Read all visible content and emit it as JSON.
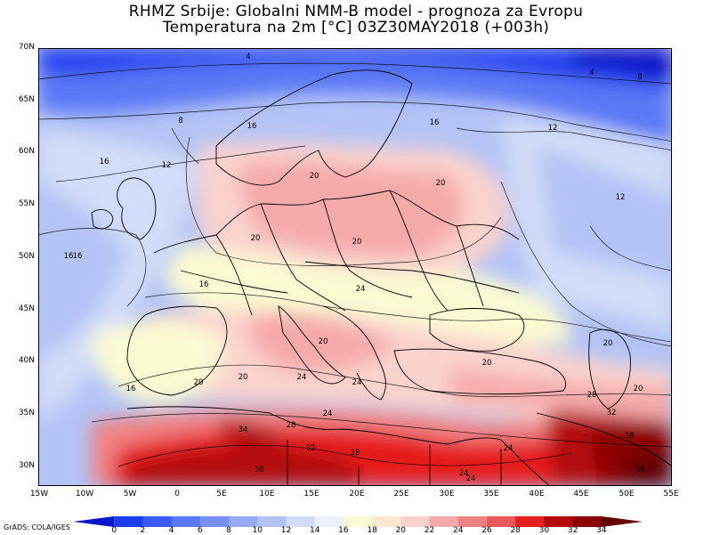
{
  "title": {
    "line1": "RHMZ Srbije: Globalni NMM-B model - prognoza za Evropu",
    "line2": "Temperatura na 2m [°C] 03Z30MAY2018 (+003h)"
  },
  "axes": {
    "lat_labels": [
      "70N",
      "65N",
      "60N",
      "55N",
      "50N",
      "45N",
      "40N",
      "35N",
      "30N"
    ],
    "lon_labels": [
      "15W",
      "10W",
      "5W",
      "0",
      "5E",
      "10E",
      "15E",
      "20E",
      "25E",
      "30E",
      "35E",
      "40E",
      "45E",
      "50E",
      "55E"
    ]
  },
  "credit": "GrADS: COLA/IGES",
  "colorbar": {
    "levels": [
      "0",
      "2",
      "4",
      "6",
      "8",
      "10",
      "12",
      "14",
      "16",
      "18",
      "20",
      "22",
      "24",
      "26",
      "28",
      "30",
      "32",
      "34"
    ],
    "colors": [
      "#0a14c8",
      "#1e3cf0",
      "#3c5af5",
      "#5a78f5",
      "#7890f5",
      "#96aaf5",
      "#b4c3f5",
      "#d2dcf8",
      "#ebf0fb",
      "#fafad2",
      "#fbe6d2",
      "#fad2cd",
      "#f5aaaa",
      "#f08282",
      "#eb5a5a",
      "#e61e1e",
      "#b40a0a",
      "#8c0000",
      "#640000"
    ]
  },
  "contour_labels": [
    {
      "v": "4"
    },
    {
      "v": "4"
    },
    {
      "v": "8"
    },
    {
      "v": "8"
    },
    {
      "v": "16"
    },
    {
      "v": "16"
    },
    {
      "v": "16"
    },
    {
      "v": "12"
    },
    {
      "v": "12"
    },
    {
      "v": "12"
    },
    {
      "v": "16"
    },
    {
      "v": "16"
    },
    {
      "v": "20"
    },
    {
      "v": "20"
    },
    {
      "v": "20"
    },
    {
      "v": "20"
    },
    {
      "v": "16"
    },
    {
      "v": "24"
    },
    {
      "v": "20"
    },
    {
      "v": "20"
    },
    {
      "v": "16"
    },
    {
      "v": "20"
    },
    {
      "v": "20"
    },
    {
      "v": "24"
    },
    {
      "v": "24"
    },
    {
      "v": "20"
    },
    {
      "v": "20"
    },
    {
      "v": "28"
    },
    {
      "v": "24"
    },
    {
      "v": "32"
    },
    {
      "v": "24"
    },
    {
      "v": "34"
    },
    {
      "v": "28"
    },
    {
      "v": "32"
    },
    {
      "v": "28"
    },
    {
      "v": "24"
    },
    {
      "v": "24"
    },
    {
      "v": "36"
    },
    {
      "v": "38"
    },
    {
      "v": "36"
    }
  ]
}
